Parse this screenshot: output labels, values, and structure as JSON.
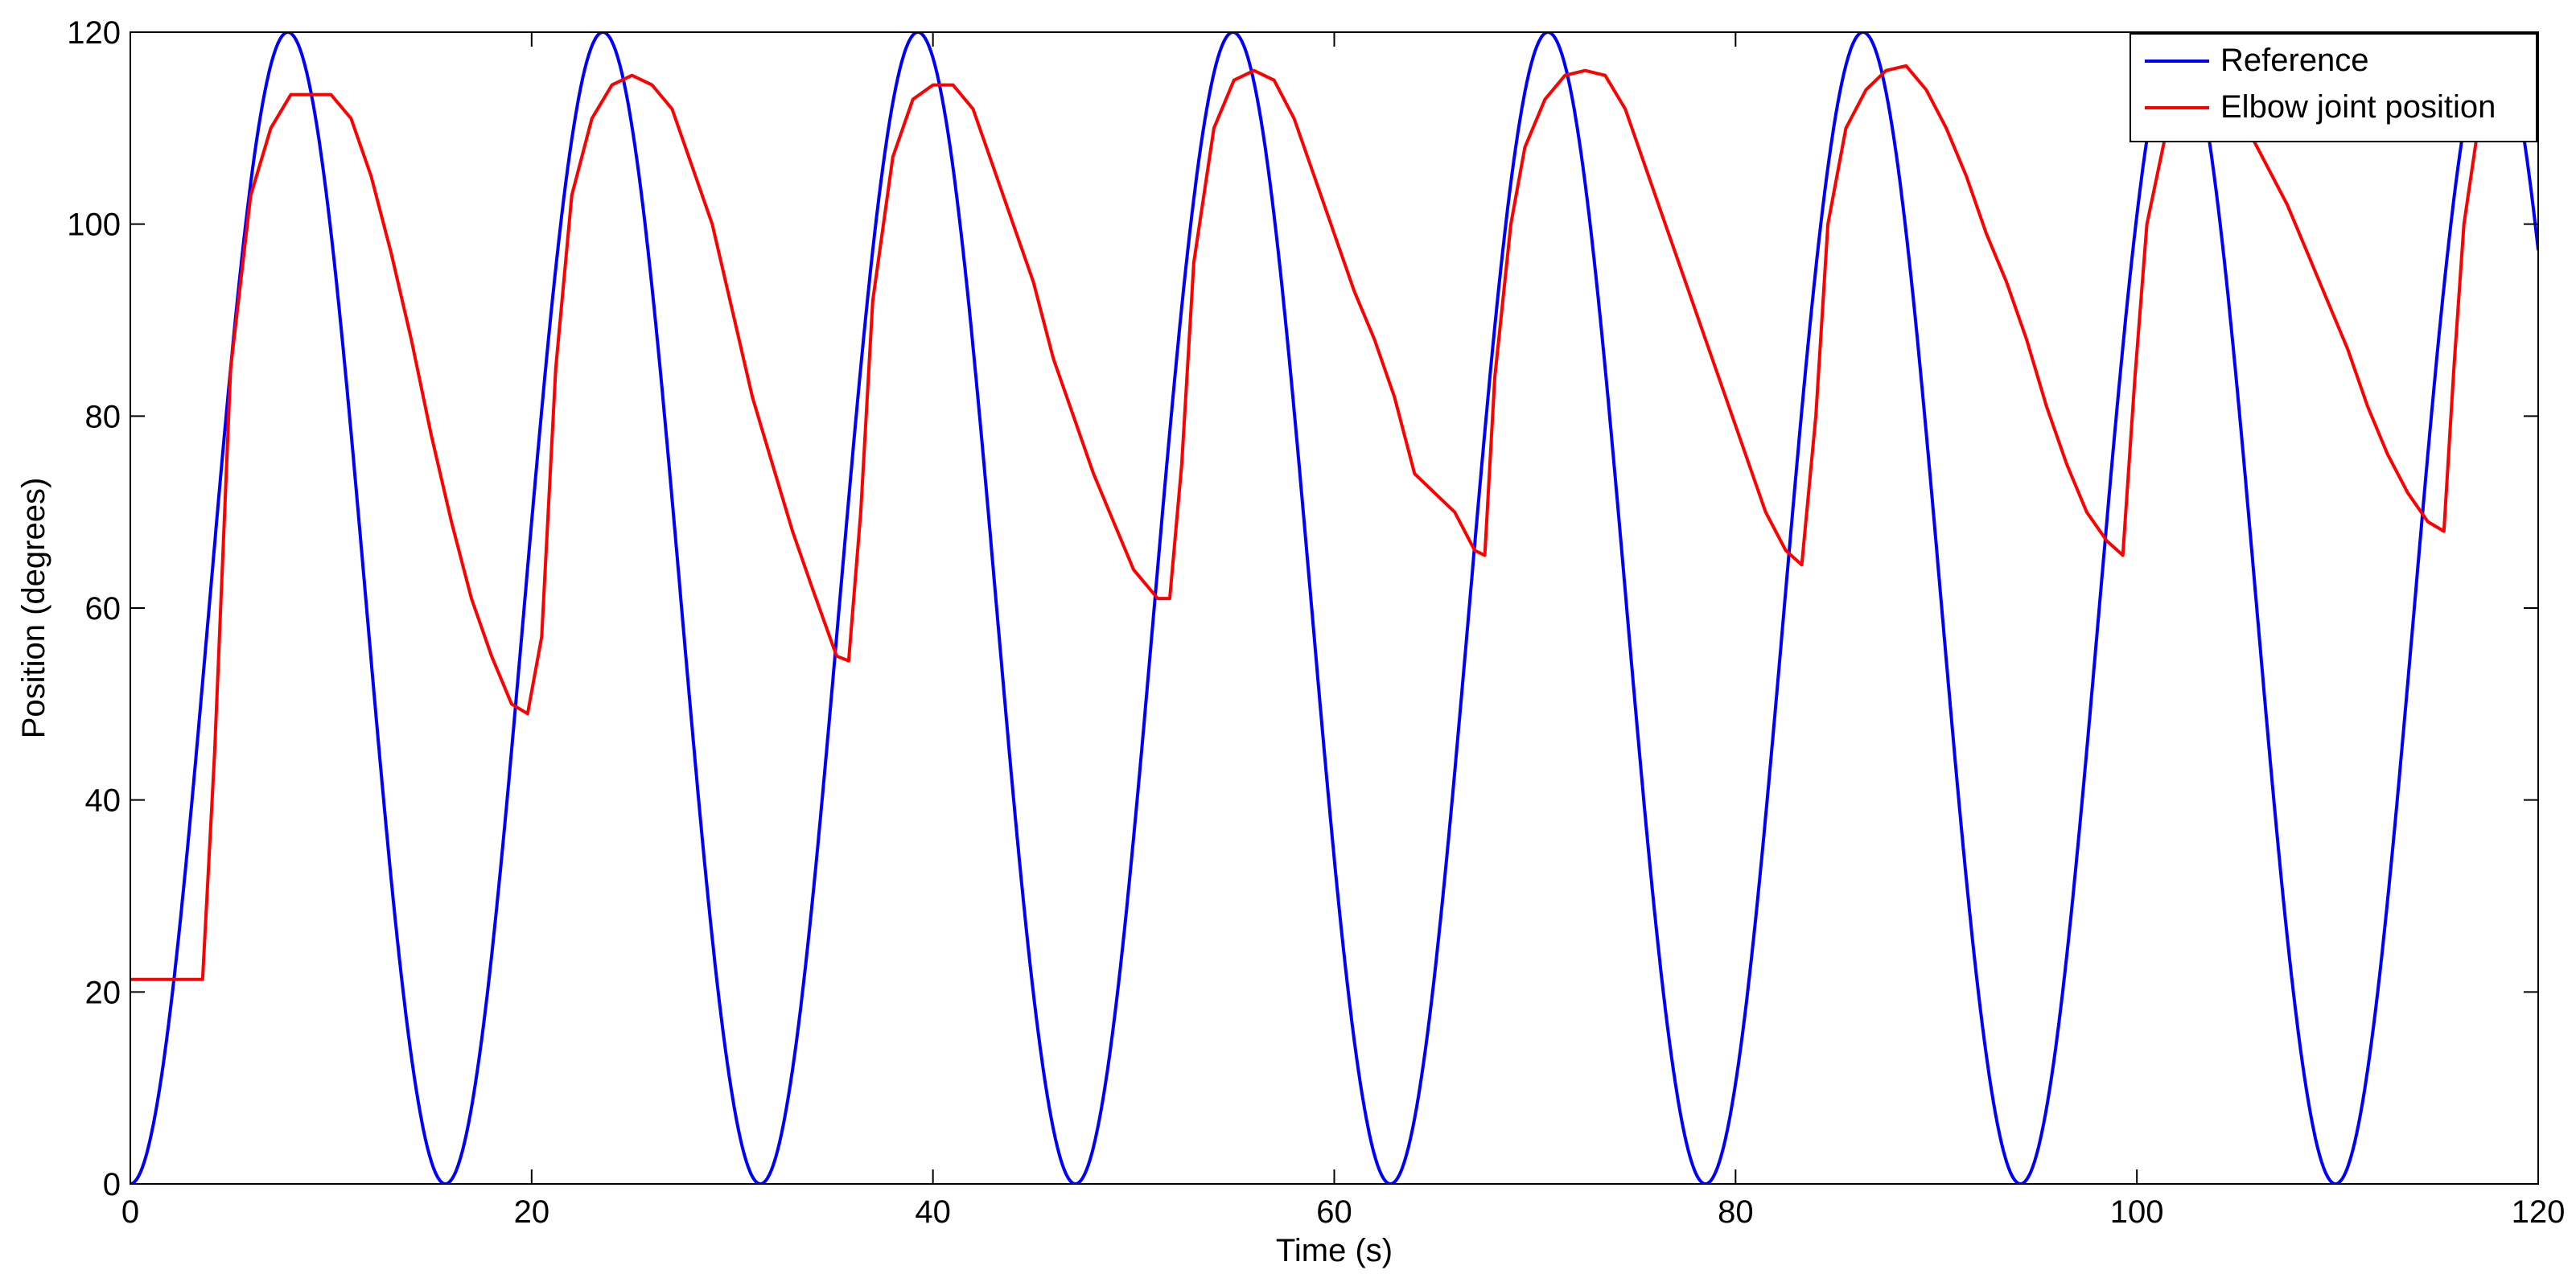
{
  "chart_data": {
    "type": "line",
    "title": "",
    "xlabel": "Time (s)",
    "ylabel": "Position (degrees)",
    "xlim": [
      0,
      120
    ],
    "ylim": [
      0,
      120
    ],
    "x_ticks": [
      0,
      20,
      40,
      60,
      80,
      100,
      120
    ],
    "y_ticks": [
      0,
      20,
      40,
      60,
      80,
      100,
      120
    ],
    "grid": false,
    "legend_position": "top-right",
    "series": [
      {
        "name": "Reference",
        "color": "#0000ff",
        "kind": "sinusoid",
        "offset": 60,
        "amplitude": 60,
        "period": 15.7,
        "phase_min_at": 0,
        "x_start": 0,
        "x_end": 120
      },
      {
        "name": "Elbow joint position",
        "color": "#ff0000",
        "x": [
          0,
          3.6,
          4.2,
          5.0,
          6.0,
          7.0,
          8.0,
          10.0,
          11.0,
          12.0,
          13.0,
          14.0,
          15.0,
          16.0,
          17.0,
          18.0,
          19.0,
          19.8,
          20.5,
          21.2,
          22.0,
          23.0,
          24.0,
          25.0,
          26.0,
          27.0,
          28.0,
          29.0,
          30.0,
          31.0,
          32.0,
          33.0,
          34.0,
          35.2,
          35.8,
          36.4,
          37.0,
          38.0,
          39.0,
          40.0,
          41.0,
          42.0,
          43.0,
          44.0,
          45.0,
          46.0,
          47.0,
          48.0,
          49.0,
          50.0,
          51.2,
          51.8,
          52.4,
          53.0,
          54.0,
          55.0,
          56.0,
          57.0,
          58.0,
          59.0,
          60.0,
          61.0,
          62.0,
          63.0,
          64.0,
          65.0,
          66.0,
          67.0,
          67.5,
          68.0,
          68.8,
          69.5,
          70.5,
          71.5,
          72.5,
          73.5,
          74.5,
          75.5,
          76.5,
          77.5,
          78.5,
          79.5,
          80.5,
          81.5,
          82.5,
          83.3,
          84.0,
          84.6,
          85.5,
          86.5,
          87.5,
          88.5,
          89.5,
          90.5,
          91.5,
          92.5,
          93.5,
          94.5,
          95.5,
          96.5,
          97.5,
          98.5,
          99.3,
          99.9,
          100.5,
          101.5,
          102.5,
          103.5,
          104.5,
          105.5,
          106.5,
          107.5,
          108.5,
          109.5,
          110.5,
          111.5,
          112.5,
          113.5,
          114.5,
          115.3,
          115.8,
          116.3,
          117.0,
          118.0,
          119.0,
          120.0
        ],
        "y": [
          21.3,
          21.3,
          45,
          85,
          103,
          110,
          113.5,
          113.5,
          111,
          105,
          97,
          88,
          78,
          69,
          61,
          55,
          50,
          49,
          57,
          85,
          103,
          111,
          114.5,
          115.5,
          114.5,
          112,
          106,
          100,
          91,
          82,
          75,
          68,
          62,
          55,
          54.5,
          70,
          92,
          107,
          113,
          114.5,
          114.5,
          112,
          106,
          100,
          94,
          86,
          80,
          74,
          69,
          64,
          61,
          61,
          75,
          96,
          110,
          115,
          116,
          115,
          111,
          105,
          99,
          93,
          88,
          82,
          74,
          72,
          70,
          66,
          65.5,
          84,
          100,
          108,
          113,
          115.5,
          116,
          115.5,
          112,
          106,
          100,
          94,
          88,
          82,
          76,
          70,
          66,
          64.5,
          80,
          100,
          110,
          114,
          116,
          116.5,
          114,
          110,
          105,
          99,
          94,
          88,
          81,
          75,
          70,
          67,
          65.5,
          84,
          100,
          110,
          114,
          116,
          114,
          110,
          106,
          102,
          97,
          92,
          87,
          81,
          76,
          72,
          69,
          68,
          85,
          100,
          110,
          115,
          116,
          116
        ]
      }
    ]
  }
}
